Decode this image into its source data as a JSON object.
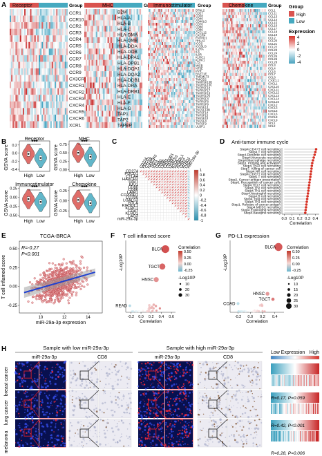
{
  "panels": {
    "A": {
      "letter": "A",
      "heatmaps": [
        {
          "title": "Receptor",
          "group_title": "Group",
          "genes": [
            "CCR1",
            "CCR10",
            "CCR2",
            "CCR3",
            "CCR4",
            "CCR5",
            "CCR6",
            "CCR7",
            "CCR8",
            "CCR9",
            "CX3CR1",
            "CXCR1",
            "CXCR2",
            "CXCR3",
            "CXCR4",
            "CXCR5",
            "CXCR6",
            "XCR1"
          ]
        },
        {
          "title": "MHC",
          "group_title": "Group",
          "genes": [
            "B2M",
            "HLA-A",
            "HLA-B",
            "HLA-C",
            "HLA-DMA",
            "HLA-DMB",
            "HLA-DOA",
            "HLA-DOB",
            "HLA-DPA1",
            "HLA-DPB1",
            "HLA-DQA1",
            "HLA-DQA2",
            "HLA-DQB1",
            "HLA-DRA",
            "HLA-DRB1",
            "HLA-E",
            "HLA-F",
            "HLA-G",
            "TAP1",
            "TAP2",
            "TAPBP"
          ]
        },
        {
          "title": "Immunostimulator",
          "group_title": "Group",
          "genes": [
            "BTNL2",
            "CD27",
            "CD28",
            "CD40",
            "CD40LG",
            "CD70",
            "CD80",
            "CD86",
            "CXCL12",
            "CXCR4",
            "ENTPD1",
            "HHLA2",
            "ICOS",
            "ICOSLG",
            "IL2RA",
            "IL6",
            "IL6R",
            "KLRC1",
            "KLRK1",
            "LTA",
            "MICB",
            "NT5E",
            "PVR",
            "RAET1E",
            "TMEM173",
            "TMIGD2",
            "TNFRSF13B",
            "TNFRSF13C",
            "TNFRSF14",
            "TNFRSF17",
            "TNFRSF18",
            "TNFRSF25",
            "TNFRSF4",
            "TNFRSF8",
            "TNFRSF9",
            "TNFSF13",
            "TNFSF13B",
            "TNFSF14",
            "TNFSF15",
            "TNFSF18",
            "TNFSF4",
            "TNFSF9",
            "ULBP1"
          ]
        },
        {
          "title": "Chemokine",
          "group_title": "Group",
          "genes": [
            "CCL1",
            "CCL11",
            "CCL13",
            "CCL14",
            "CCL15",
            "CCL16",
            "CCL17",
            "CCL18",
            "CCL19",
            "CCL2",
            "CCL20",
            "CCL21",
            "CCL22",
            "CCL23",
            "CCL24",
            "CCL25",
            "CCL26",
            "CCL28",
            "CCL3",
            "CCL4",
            "CCL5",
            "CCL7",
            "CCL8",
            "CX3CL1",
            "CXCL1",
            "CXCL10",
            "CXCL11",
            "CXCL12",
            "CXCL13",
            "CXCL14",
            "CXCL16",
            "CXCL2",
            "CXCL3",
            "CXCL5",
            "CXCL6",
            "CXCL8",
            "CXCL9",
            "XCL1",
            "XCL2"
          ]
        }
      ],
      "legend": {
        "group_title": "Group",
        "group_items": [
          {
            "label": "High",
            "color": "#d9534f"
          },
          {
            "label": "Low",
            "color": "#45a9c0"
          }
        ],
        "expression_title": "Expression",
        "expression_ticks": [
          "4",
          "2",
          "0",
          "-2",
          "-4"
        ]
      }
    },
    "B": {
      "letter": "B",
      "y_label": "GSVA score",
      "plots": [
        {
          "title": "Receptor",
          "sig": "***",
          "categories": [
            "High",
            "Low"
          ],
          "yticks": [
            "0.2",
            "0.0",
            "-0.2",
            "-0.4"
          ],
          "ylim": [
            -0.45,
            0.3
          ],
          "medians": [
            -0.02,
            -0.12
          ]
        },
        {
          "title": "MHC",
          "sig": "***",
          "categories": [
            "High",
            "Low"
          ],
          "yticks": [
            "0.75",
            "0.50",
            "0.25",
            "0.00"
          ],
          "ylim": [
            -0.05,
            0.85
          ],
          "medians": [
            0.5,
            0.38
          ]
        },
        {
          "title": "Immunostimulator",
          "sig": "***",
          "categories": [
            "High",
            "Low"
          ],
          "yticks": [
            "0.25",
            "0.00",
            "-0.25",
            "-0.50"
          ],
          "ylim": [
            -0.55,
            0.3
          ],
          "medians": [
            -0.05,
            -0.13
          ]
        },
        {
          "title": "Chemokine",
          "sig": "***",
          "categories": [
            "High",
            "Low"
          ],
          "yticks": [
            "0.25",
            "0.00",
            "-0.25"
          ],
          "ylim": [
            -0.4,
            0.35
          ],
          "medians": [
            0.02,
            -0.06
          ]
        }
      ],
      "colors": {
        "high": "#d9534f",
        "low": "#45a9c0"
      }
    },
    "C": {
      "letter": "C",
      "variables": [
        "CD274",
        "PDCD1",
        "CTLA4",
        "HAVCR2",
        "TIGIT",
        "IDO1",
        "CD80",
        "CD86",
        "LAIR1",
        "CD200R1",
        "CD200",
        "LGALS3",
        "BTLA",
        "KIR3DL1",
        "KLRC1",
        "CD47",
        "KLRD1",
        "LAG3",
        "miR-29a-3p"
      ],
      "colorbar_ticks": [
        "1",
        "0.8",
        "0.6",
        "0.4",
        "0.2",
        "0",
        "-0.2",
        "-0.4",
        "-0.6",
        "-0.8",
        "-1"
      ]
    },
    "D": {
      "letter": "D",
      "title": "Anti-tumor immune cycle",
      "xlabel": "Correlation",
      "xticks": [
        "0.0",
        "0.1",
        "0.2",
        "0.3",
        "0.4"
      ],
      "xlim": [
        -0.03,
        0.45
      ],
      "steps": [
        {
          "label": "Step4.CD4+T cell recruiting",
          "value": 0.41
        },
        {
          "label": "Step4.T cell recruiting",
          "value": 0.4
        },
        {
          "label": "Step4.Dendritic cell recruiting",
          "value": 0.39
        },
        {
          "label": "Step4.Monocyte recruiting",
          "value": 0.38
        },
        {
          "label": "Step4.Macrophage recruiting",
          "value": 0.37
        },
        {
          "label": "Step3. Priming and activation",
          "value": 0.36
        },
        {
          "label": "Step4.Th22 cell recruiting",
          "value": 0.355
        },
        {
          "label": "Step7. Killing of cancer cell",
          "value": 0.35
        },
        {
          "label": "Step4.NK cell recruiting",
          "value": 0.345
        },
        {
          "label": "Step4.CD8+T cell recruiting",
          "value": 0.34
        },
        {
          "label": "Step5.T cell recruiting",
          "value": 0.335
        },
        {
          "label": "Step2. Cancer antigen presentation",
          "value": 0.33
        },
        {
          "label": "Step6. Recognition of cancer cells",
          "value": 0.325
        },
        {
          "label": "Step4.Th17 cell recruiting",
          "value": 0.32
        },
        {
          "label": "Step4.Th2 cell recruiting",
          "value": 0.315
        },
        {
          "label": "Step4.Th1 cell recruiting",
          "value": 0.31
        },
        {
          "label": "Step4.Neutrophil recruiting",
          "value": 0.305
        },
        {
          "label": "Step4.B cell recruiting",
          "value": 0.3
        },
        {
          "label": "Step4.Treg cell recruiting",
          "value": 0.295
        },
        {
          "label": "Step4.Th1 cell recruiting",
          "value": 0.29
        },
        {
          "label": "Step1. Release of cancer antigen",
          "value": 0.285
        },
        {
          "label": "Step4.MDSC recruiting",
          "value": 0.28
        },
        {
          "label": "Step4.Eosinophil recruiting",
          "value": 0.275
        },
        {
          "label": "Step4.Basophil recruiting",
          "value": 0.27
        }
      ]
    },
    "E": {
      "letter": "E",
      "title": "TCGA-BRCA",
      "r_text": "R=-0.27",
      "p_text": "P<0.001",
      "xlabel": "miR-29a-3p expression",
      "ylabel": "T cell inflamed score",
      "xticks": [
        "10",
        "12",
        "14"
      ],
      "yticks": [
        "0.50",
        "0.25",
        "0.00",
        "-0.25"
      ],
      "xlim": [
        8.2,
        15.2
      ],
      "ylim": [
        -0.35,
        0.6
      ]
    },
    "F": {
      "letter": "F",
      "title": "T cell inflamed score",
      "xlabel": "Correlation",
      "ylabel": "-Log10P",
      "xticks": [
        "-0.2",
        "0.0",
        "0.2",
        "0.4",
        "0.6"
      ],
      "xlim": [
        -0.3,
        0.68
      ],
      "ylim": [
        0,
        33
      ],
      "labels": [
        {
          "text": "BLCA",
          "x": 0.48,
          "y": 29
        },
        {
          "text": "TGCT",
          "x": 0.42,
          "y": 21
        },
        {
          "text": "HNSC",
          "x": 0.3,
          "y": 15
        },
        {
          "text": "READ",
          "x": -0.22,
          "y": 3
        }
      ],
      "legend": {
        "color_title": "Correlation",
        "color_ticks": [
          "0.50",
          "0.25",
          "0.00",
          "-0.25"
        ],
        "size_title": "-Log10P",
        "size_ticks": [
          "10",
          "20",
          "30"
        ]
      }
    },
    "G": {
      "letter": "G",
      "title": "PD-L1 expression",
      "xlabel": "Correlation",
      "ylabel": "-Log10P",
      "xticks": [
        "-0.2",
        "0.0",
        "0.2",
        "0.4"
      ],
      "xlim": [
        -0.33,
        0.55
      ],
      "ylim": [
        0,
        33
      ],
      "labels": [
        {
          "text": "BLCA",
          "x": 0.46,
          "y": 30
        },
        {
          "text": "HNSC",
          "x": 0.28,
          "y": 8.5
        },
        {
          "text": "TGCT",
          "x": 0.37,
          "y": 6
        },
        {
          "text": "COAD",
          "x": -0.2,
          "y": 4
        }
      ],
      "legend": {
        "color_title": "Correlation",
        "color_ticks": [
          "0.50",
          "0.25",
          "0.00",
          "-0.25"
        ],
        "size_title": "-Log10P",
        "size_ticks": [
          "10",
          "15",
          "20",
          "25",
          "30"
        ]
      }
    },
    "H": {
      "letter": "H",
      "groups": [
        {
          "title": "Sample with low miR-29a-3p",
          "col1": "miR-29a-3p",
          "col2": "CD8"
        },
        {
          "title": "Sample with high miR-29a-3p",
          "col1": "miR-29a-3p",
          "col2": "CD8"
        }
      ],
      "rows": [
        "breast cancer",
        "lung cancer",
        "melanoma"
      ],
      "expression": {
        "title": "Expression",
        "low": "Low",
        "high": "High"
      },
      "stats": [
        "R=0.17, P=0.059",
        "R=0.42, P<0.001",
        "R=0.28, P=0.006"
      ]
    }
  }
}
